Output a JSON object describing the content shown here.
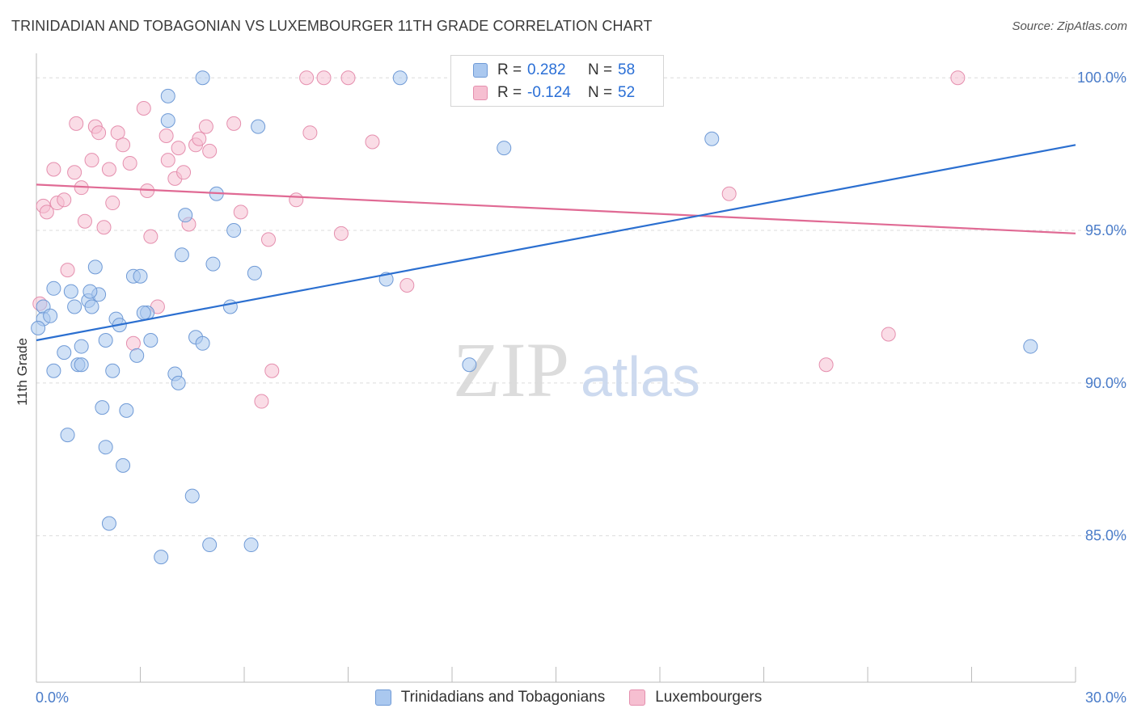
{
  "title": "TRINIDADIAN AND TOBAGONIAN VS LUXEMBOURGER 11TH GRADE CORRELATION CHART",
  "source": "Source: ZipAtlas.com",
  "watermark": {
    "zip": "ZIP",
    "atlas": "atlas"
  },
  "legend": {
    "r_label": "R =",
    "n_label": "N =",
    "series1": {
      "r": "0.282",
      "n": "58"
    },
    "series2": {
      "r": "-0.124",
      "n": "52"
    }
  },
  "bottom_legend": {
    "series1": "Trinidadians and Tobagonians",
    "series2": "Luxembourgers"
  },
  "colors": {
    "blue_fill": "#aac8ef",
    "blue_stroke": "#6f9ad6",
    "blue_line": "#2b6fd0",
    "pink_fill": "#f6bfd1",
    "pink_stroke": "#e58fae",
    "pink_line": "#e06a94",
    "axis_text": "#4a7cc9",
    "grid": "#dcdcdc"
  },
  "chart_data": {
    "type": "scatter",
    "title": "TRINIDADIAN AND TOBAGONIAN VS LUXEMBOURGER 11TH GRADE CORRELATION CHART",
    "xlabel": "",
    "ylabel": "11th Grade",
    "xlim": [
      0,
      30
    ],
    "ylim": [
      80.2,
      100.8
    ],
    "x_tick_labels": [
      {
        "value": 0,
        "label": "0.0%"
      },
      {
        "value": 30,
        "label": "30.0%"
      }
    ],
    "y_tick_labels": [
      {
        "value": 85,
        "label": "85.0%"
      },
      {
        "value": 90,
        "label": "90.0%"
      },
      {
        "value": 95,
        "label": "95.0%"
      },
      {
        "value": 100,
        "label": "100.0%"
      }
    ],
    "grid": true,
    "series": [
      {
        "name": "Trinidadians and Tobagonians",
        "R": 0.282,
        "N": 58,
        "trend": {
          "x": [
            0,
            30
          ],
          "y": [
            91.4,
            97.8
          ]
        },
        "points": [
          [
            0.2,
            92.5
          ],
          [
            0.2,
            92.1
          ],
          [
            0.4,
            92.2
          ],
          [
            0.5,
            93.1
          ],
          [
            0.5,
            90.4
          ],
          [
            0.8,
            91.0
          ],
          [
            0.9,
            88.3
          ],
          [
            1.0,
            93.0
          ],
          [
            1.1,
            92.5
          ],
          [
            1.2,
            90.6
          ],
          [
            1.3,
            90.6
          ],
          [
            1.3,
            91.2
          ],
          [
            1.5,
            92.7
          ],
          [
            1.6,
            92.5
          ],
          [
            1.7,
            93.8
          ],
          [
            1.8,
            92.9
          ],
          [
            1.9,
            89.2
          ],
          [
            2.0,
            91.4
          ],
          [
            2.0,
            87.9
          ],
          [
            2.1,
            85.4
          ],
          [
            2.2,
            90.4
          ],
          [
            2.3,
            92.1
          ],
          [
            2.4,
            91.9
          ],
          [
            2.5,
            87.3
          ],
          [
            2.6,
            89.1
          ],
          [
            2.8,
            93.5
          ],
          [
            2.9,
            90.9
          ],
          [
            3.0,
            93.5
          ],
          [
            3.2,
            92.3
          ],
          [
            3.3,
            91.4
          ],
          [
            3.6,
            84.3
          ],
          [
            3.8,
            98.6
          ],
          [
            3.8,
            99.4
          ],
          [
            4.0,
            90.3
          ],
          [
            4.1,
            90.0
          ],
          [
            4.2,
            94.2
          ],
          [
            4.3,
            95.5
          ],
          [
            4.5,
            86.3
          ],
          [
            4.6,
            91.5
          ],
          [
            4.8,
            91.3
          ],
          [
            4.8,
            100.0
          ],
          [
            5.0,
            84.7
          ],
          [
            5.1,
            93.9
          ],
          [
            5.2,
            96.2
          ],
          [
            5.6,
            92.5
          ],
          [
            5.7,
            95.0
          ],
          [
            6.2,
            84.7
          ],
          [
            6.3,
            93.6
          ],
          [
            6.4,
            98.4
          ],
          [
            10.1,
            93.4
          ],
          [
            10.5,
            100.0
          ],
          [
            12.5,
            90.6
          ],
          [
            13.5,
            97.7
          ],
          [
            19.5,
            98.0
          ],
          [
            28.7,
            91.2
          ],
          [
            0.05,
            91.8
          ],
          [
            3.1,
            92.3
          ],
          [
            1.55,
            93.0
          ]
        ]
      },
      {
        "name": "Luxembourgers",
        "R": -0.124,
        "N": 52,
        "trend": {
          "x": [
            0,
            30
          ],
          "y": [
            96.5,
            94.9
          ]
        },
        "points": [
          [
            0.2,
            95.8
          ],
          [
            0.3,
            95.6
          ],
          [
            0.5,
            97.0
          ],
          [
            0.6,
            95.9
          ],
          [
            0.8,
            96.0
          ],
          [
            0.9,
            93.7
          ],
          [
            1.1,
            96.9
          ],
          [
            1.15,
            98.5
          ],
          [
            1.3,
            96.4
          ],
          [
            1.4,
            95.3
          ],
          [
            1.6,
            97.3
          ],
          [
            1.7,
            98.4
          ],
          [
            1.8,
            98.2
          ],
          [
            1.95,
            95.1
          ],
          [
            2.1,
            97.0
          ],
          [
            2.2,
            95.9
          ],
          [
            2.35,
            98.2
          ],
          [
            2.5,
            97.8
          ],
          [
            2.7,
            97.2
          ],
          [
            2.8,
            91.3
          ],
          [
            3.1,
            99.0
          ],
          [
            3.2,
            96.3
          ],
          [
            3.3,
            94.8
          ],
          [
            3.5,
            92.5
          ],
          [
            3.75,
            98.1
          ],
          [
            3.8,
            97.3
          ],
          [
            4.0,
            96.7
          ],
          [
            4.1,
            97.7
          ],
          [
            4.25,
            96.9
          ],
          [
            4.4,
            95.2
          ],
          [
            4.6,
            97.8
          ],
          [
            4.7,
            98.0
          ],
          [
            4.9,
            98.4
          ],
          [
            5.0,
            97.6
          ],
          [
            5.7,
            98.5
          ],
          [
            5.9,
            95.6
          ],
          [
            6.5,
            89.4
          ],
          [
            6.7,
            94.7
          ],
          [
            6.8,
            90.4
          ],
          [
            7.5,
            96.0
          ],
          [
            7.8,
            100.0
          ],
          [
            7.9,
            98.2
          ],
          [
            8.3,
            100.0
          ],
          [
            8.8,
            94.9
          ],
          [
            9.0,
            100.0
          ],
          [
            9.7,
            97.9
          ],
          [
            10.7,
            93.2
          ],
          [
            20.0,
            96.2
          ],
          [
            22.8,
            90.6
          ],
          [
            24.6,
            91.6
          ],
          [
            26.6,
            100.0
          ],
          [
            0.1,
            92.6
          ]
        ]
      }
    ]
  }
}
